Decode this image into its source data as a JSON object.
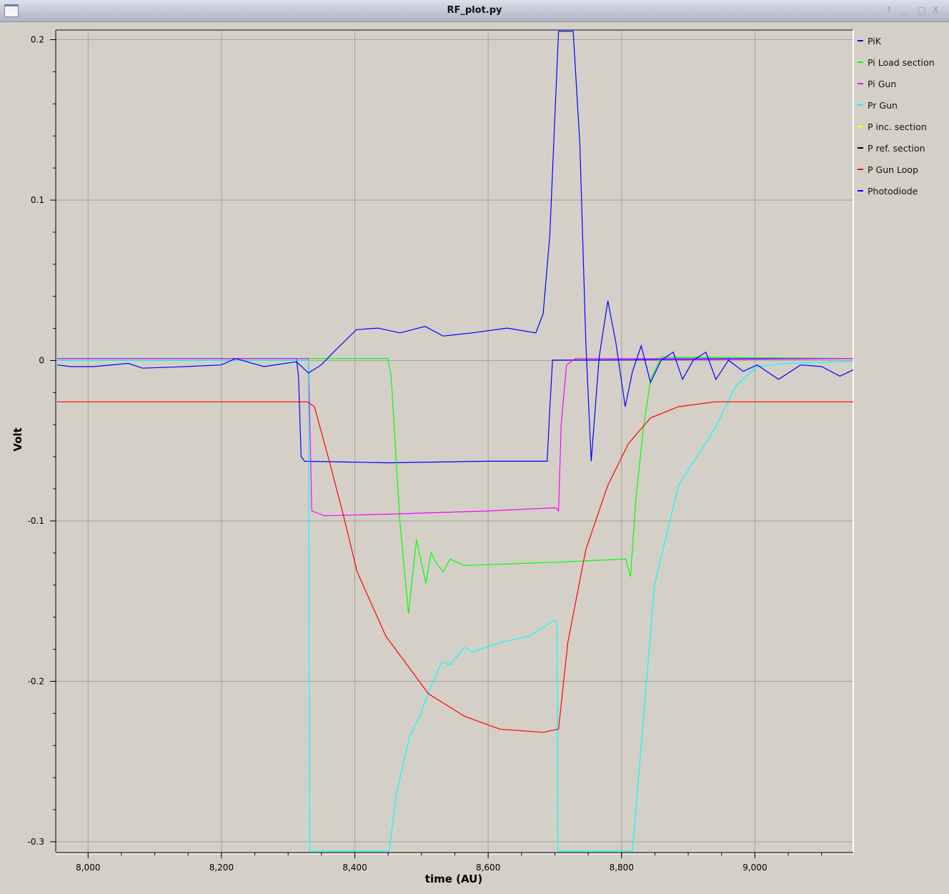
{
  "window": {
    "title": "RF_plot.py",
    "icon": "app-window-icon",
    "buttons": [
      "pin-icon",
      "minimize-icon",
      "maximize-icon",
      "close-icon"
    ]
  },
  "chart_data": {
    "type": "line",
    "title": "",
    "xlabel": "time (AU)",
    "ylabel": "Volt",
    "xlim": [
      7952,
      9148
    ],
    "ylim": [
      -0.3065,
      0.2058
    ],
    "x_ticks": [
      8000,
      8200,
      8400,
      8600,
      8800,
      9000
    ],
    "x_tick_labels": [
      "8,000",
      "8,200",
      "8,400",
      "8,600",
      "8,800",
      "9,000"
    ],
    "y_ticks": [
      0.2,
      0.1,
      0,
      -0.1,
      -0.2,
      -0.3
    ],
    "y_tick_labels": [
      "0.2",
      "0.1",
      "0",
      "-0.1",
      "-0.2",
      "-0.3"
    ],
    "grid": true,
    "legend_position": "right",
    "background": "#d4d0c8",
    "series": [
      {
        "name": "PiK",
        "color": "#0000ff",
        "points": [
          [
            7954,
            0.001
          ],
          [
            8313,
            0.001
          ],
          [
            8316,
            -0.01
          ],
          [
            8320,
            -0.06
          ],
          [
            8325,
            -0.063
          ],
          [
            8450,
            -0.064
          ],
          [
            8600,
            -0.063
          ],
          [
            8689,
            -0.063
          ],
          [
            8693,
            -0.03
          ],
          [
            8697,
            0
          ],
          [
            9148,
            0.001
          ]
        ]
      },
      {
        "name": "Pi Load section",
        "color": "#00ff00",
        "points": [
          [
            7954,
            0.001
          ],
          [
            8450,
            0.001
          ],
          [
            8455,
            -0.01
          ],
          [
            8468,
            -0.1
          ],
          [
            8481,
            -0.158
          ],
          [
            8493,
            -0.112
          ],
          [
            8507,
            -0.139
          ],
          [
            8515,
            -0.12
          ],
          [
            8522,
            -0.126
          ],
          [
            8533,
            -0.132
          ],
          [
            8543,
            -0.124
          ],
          [
            8565,
            -0.128
          ],
          [
            8700,
            -0.126
          ],
          [
            8807,
            -0.124
          ],
          [
            8814,
            -0.135
          ],
          [
            8822,
            -0.087
          ],
          [
            8833,
            -0.043
          ],
          [
            8844,
            -0.012
          ],
          [
            8860,
            0.002
          ],
          [
            9148,
            0.001
          ]
        ]
      },
      {
        "name": "Pi Gun",
        "color": "#ff00ff",
        "points": [
          [
            7954,
            0.001
          ],
          [
            8331,
            0.001
          ],
          [
            8336,
            -0.094
          ],
          [
            8355,
            -0.097
          ],
          [
            8450,
            -0.096
          ],
          [
            8600,
            -0.094
          ],
          [
            8702,
            -0.092
          ],
          [
            8706,
            -0.094
          ],
          [
            8710,
            -0.04
          ],
          [
            8718,
            -0.003
          ],
          [
            8731,
            0.001
          ],
          [
            9148,
            0.001
          ]
        ]
      },
      {
        "name": "Pr Gun",
        "color": "#00ffff",
        "points": [
          [
            7954,
            0
          ],
          [
            8331,
            0
          ],
          [
            8333,
            -0.306
          ],
          [
            8452,
            -0.306
          ],
          [
            8463,
            -0.27
          ],
          [
            8483,
            -0.234
          ],
          [
            8499,
            -0.221
          ],
          [
            8510,
            -0.208
          ],
          [
            8531,
            -0.188
          ],
          [
            8543,
            -0.19
          ],
          [
            8565,
            -0.179
          ],
          [
            8576,
            -0.182
          ],
          [
            8619,
            -0.176
          ],
          [
            8662,
            -0.172
          ],
          [
            8700,
            -0.162
          ],
          [
            8704,
            -0.165
          ],
          [
            8705,
            -0.306
          ],
          [
            8817,
            -0.306
          ],
          [
            8830,
            -0.24
          ],
          [
            8850,
            -0.14
          ],
          [
            8886,
            -0.078
          ],
          [
            8940,
            -0.043
          ],
          [
            8972,
            -0.016
          ],
          [
            9004,
            -0.004
          ],
          [
            9047,
            -0.002
          ],
          [
            9148,
            -0.001
          ]
        ]
      },
      {
        "name": "P inc. section",
        "color": "#ffff00",
        "points": []
      },
      {
        "name": "P ref. section",
        "color": "#000000",
        "points": []
      },
      {
        "name": "P Gun Loop",
        "color": "#ff0000",
        "points": [
          [
            7954,
            -0.026
          ],
          [
            8329,
            -0.026
          ],
          [
            8340,
            -0.029
          ],
          [
            8361,
            -0.061
          ],
          [
            8383,
            -0.096
          ],
          [
            8404,
            -0.132
          ],
          [
            8447,
            -0.172
          ],
          [
            8511,
            -0.208
          ],
          [
            8565,
            -0.222
          ],
          [
            8618,
            -0.23
          ],
          [
            8683,
            -0.232
          ],
          [
            8706,
            -0.23
          ],
          [
            8720,
            -0.176
          ],
          [
            8747,
            -0.118
          ],
          [
            8780,
            -0.078
          ],
          [
            8811,
            -0.052
          ],
          [
            8844,
            -0.036
          ],
          [
            8886,
            -0.029
          ],
          [
            8940,
            -0.026
          ],
          [
            9148,
            -0.026
          ]
        ]
      },
      {
        "name": "Photodiode",
        "color": "#0000ff",
        "points": [
          [
            7954,
            -0.003
          ],
          [
            7975,
            -0.004
          ],
          [
            8008,
            -0.004
          ],
          [
            8061,
            -0.002
          ],
          [
            8082,
            -0.005
          ],
          [
            8147,
            -0.004
          ],
          [
            8200,
            -0.003
          ],
          [
            8222,
            0.001
          ],
          [
            8264,
            -0.004
          ],
          [
            8313,
            -0.001
          ],
          [
            8331,
            -0.008
          ],
          [
            8350,
            -0.003
          ],
          [
            8371,
            0.006
          ],
          [
            8403,
            0.019
          ],
          [
            8435,
            0.02
          ],
          [
            8468,
            0.017
          ],
          [
            8506,
            0.021
          ],
          [
            8533,
            0.015
          ],
          [
            8576,
            0.017
          ],
          [
            8629,
            0.02
          ],
          [
            8672,
            0.017
          ],
          [
            8683,
            0.029
          ],
          [
            8693,
            0.078
          ],
          [
            8706,
            0.205
          ],
          [
            8728,
            0.205
          ],
          [
            8738,
            0.135
          ],
          [
            8747,
            0.011
          ],
          [
            8755,
            -0.063
          ],
          [
            8767,
            0.002
          ],
          [
            8780,
            0.037
          ],
          [
            8792,
            0.011
          ],
          [
            8806,
            -0.029
          ],
          [
            8817,
            -0.007
          ],
          [
            8830,
            0.009
          ],
          [
            8844,
            -0.014
          ],
          [
            8860,
            0
          ],
          [
            8878,
            0.005
          ],
          [
            8892,
            -0.012
          ],
          [
            8908,
            0
          ],
          [
            8927,
            0.005
          ],
          [
            8942,
            -0.012
          ],
          [
            8961,
            0
          ],
          [
            8983,
            -0.007
          ],
          [
            9004,
            -0.003
          ],
          [
            9036,
            -0.012
          ],
          [
            9069,
            -0.003
          ],
          [
            9101,
            -0.004
          ],
          [
            9128,
            -0.01
          ],
          [
            9148,
            -0.006
          ]
        ]
      }
    ]
  }
}
